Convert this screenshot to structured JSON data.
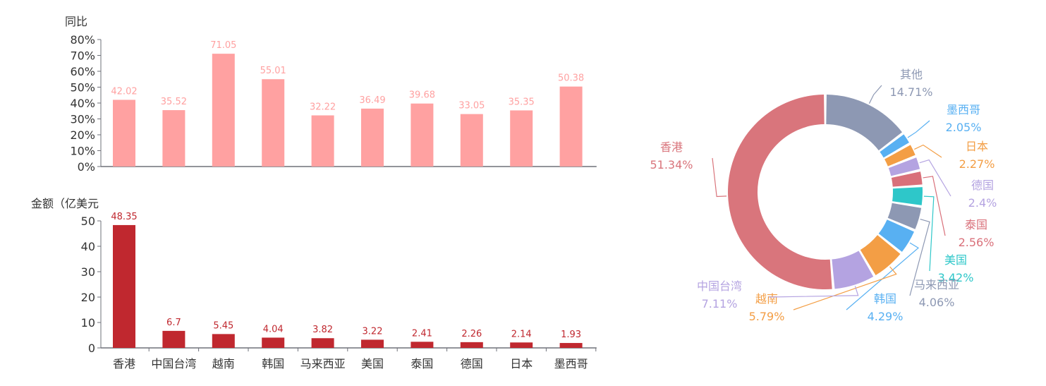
{
  "chart_data": [
    {
      "type": "bar",
      "ylabel": "同比",
      "ylim": [
        0,
        80
      ],
      "yticks": [
        "0%",
        "10%",
        "20%",
        "30%",
        "40%",
        "50%",
        "60%",
        "70%",
        "80%"
      ],
      "categories": [
        "香港",
        "中国台湾",
        "越南",
        "韩国",
        "马来西亚",
        "美国",
        "泰国",
        "德国",
        "日本",
        "墨西哥"
      ],
      "values": [
        42.02,
        35.52,
        71.05,
        55.01,
        32.22,
        36.49,
        39.68,
        33.05,
        35.35,
        50.38
      ],
      "data_labels": [
        "42.02",
        "35.52",
        "71.05",
        "55.01",
        "32.22",
        "36.49",
        "39.68",
        "33.05",
        "35.35",
        "50.38"
      ],
      "color": "#ffa1a1",
      "show_x_labels": false
    },
    {
      "type": "bar",
      "ylabel": "金额（亿美元",
      "ylim": [
        0,
        50
      ],
      "yticks": [
        "0",
        "10",
        "20",
        "30",
        "40",
        "50"
      ],
      "categories": [
        "香港",
        "中国台湾",
        "越南",
        "韩国",
        "马来西亚",
        "美国",
        "泰国",
        "德国",
        "日本",
        "墨西哥"
      ],
      "values": [
        48.35,
        6.7,
        5.45,
        4.04,
        3.82,
        3.22,
        2.41,
        2.26,
        2.14,
        1.93
      ],
      "data_labels": [
        "48.35",
        "6.7",
        "5.45",
        "4.04",
        "3.82",
        "3.22",
        "2.41",
        "2.26",
        "2.14",
        "1.93"
      ],
      "color": "#c0282f",
      "show_x_labels": true
    },
    {
      "type": "pie",
      "variant": "donut",
      "slices": [
        {
          "name": "其他",
          "value": 14.71,
          "label": "14.71%",
          "color": "#8d98b3"
        },
        {
          "name": "墨西哥",
          "value": 2.05,
          "label": "2.05%",
          "color": "#58b0f2"
        },
        {
          "name": "日本",
          "value": 2.27,
          "label": "2.27%",
          "color": "#f39e45"
        },
        {
          "name": "德国",
          "value": 2.4,
          "label": "2.4%",
          "color": "#b4a3e1"
        },
        {
          "name": "泰国",
          "value": 2.56,
          "label": "2.56%",
          "color": "#d9707a"
        },
        {
          "name": "美国",
          "value": 3.42,
          "label": "3.42%",
          "color": "#2ec7c9"
        },
        {
          "name": "马来西亚",
          "value": 4.06,
          "label": "4.06%",
          "color": "#8d98b3"
        },
        {
          "name": "韩国",
          "value": 4.29,
          "label": "4.29%",
          "color": "#58b0f2"
        },
        {
          "name": "越南",
          "value": 5.79,
          "label": "5.79%",
          "color": "#f39e45"
        },
        {
          "name": "中国台湾",
          "value": 7.11,
          "label": "7.11%",
          "color": "#b4a3e1"
        },
        {
          "name": "香港",
          "value": 51.34,
          "label": "51.34%",
          "color": "#d9757c"
        }
      ]
    }
  ]
}
